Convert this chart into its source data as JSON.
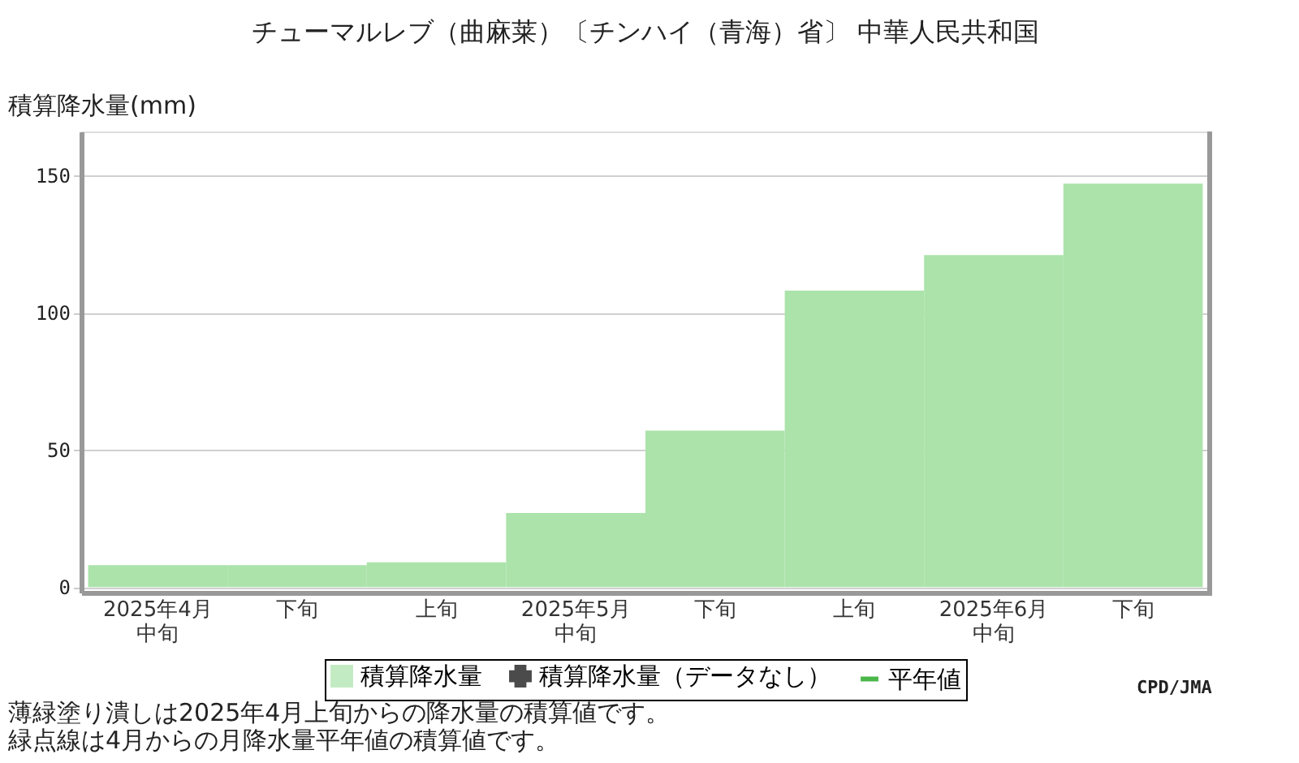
{
  "chart_data": {
    "type": "bar",
    "title": "チューマルレブ（曲麻莱）〔チンハイ（青海）省〕 中華人民共和国",
    "ylabel": "積算降水量(mm)",
    "categories": [
      "2025年4月中旬",
      "下旬",
      "上旬",
      "2025年5月中旬",
      "下旬",
      "上旬",
      "2025年6月中旬",
      "下旬"
    ],
    "series": [
      {
        "name": "積算降水量",
        "color": "#abe3aa",
        "values": [
          8,
          8,
          9,
          27,
          57,
          108,
          121,
          147
        ]
      },
      {
        "name": "積算降水量（データなし）",
        "type": "scatter",
        "marker": "cross",
        "color": "#000000",
        "values": [
          null,
          null,
          null,
          null,
          null,
          null,
          null,
          null
        ]
      },
      {
        "name": "平年値",
        "type": "line",
        "color": "#009900",
        "values": [
          null,
          null,
          null,
          null,
          null,
          null,
          null,
          null
        ]
      }
    ],
    "ylim": [
      -2,
      166
    ],
    "yticks": [
      0,
      50,
      100,
      150
    ],
    "grid": "y",
    "legend": "bottom",
    "annotations": [
      "CPD/JMA",
      "薄緑塗り潰しは2025年4月上旬からの降水量の積算値です。",
      "緑点線は4月からの月降水量平年値の積算値です。"
    ]
  }
}
